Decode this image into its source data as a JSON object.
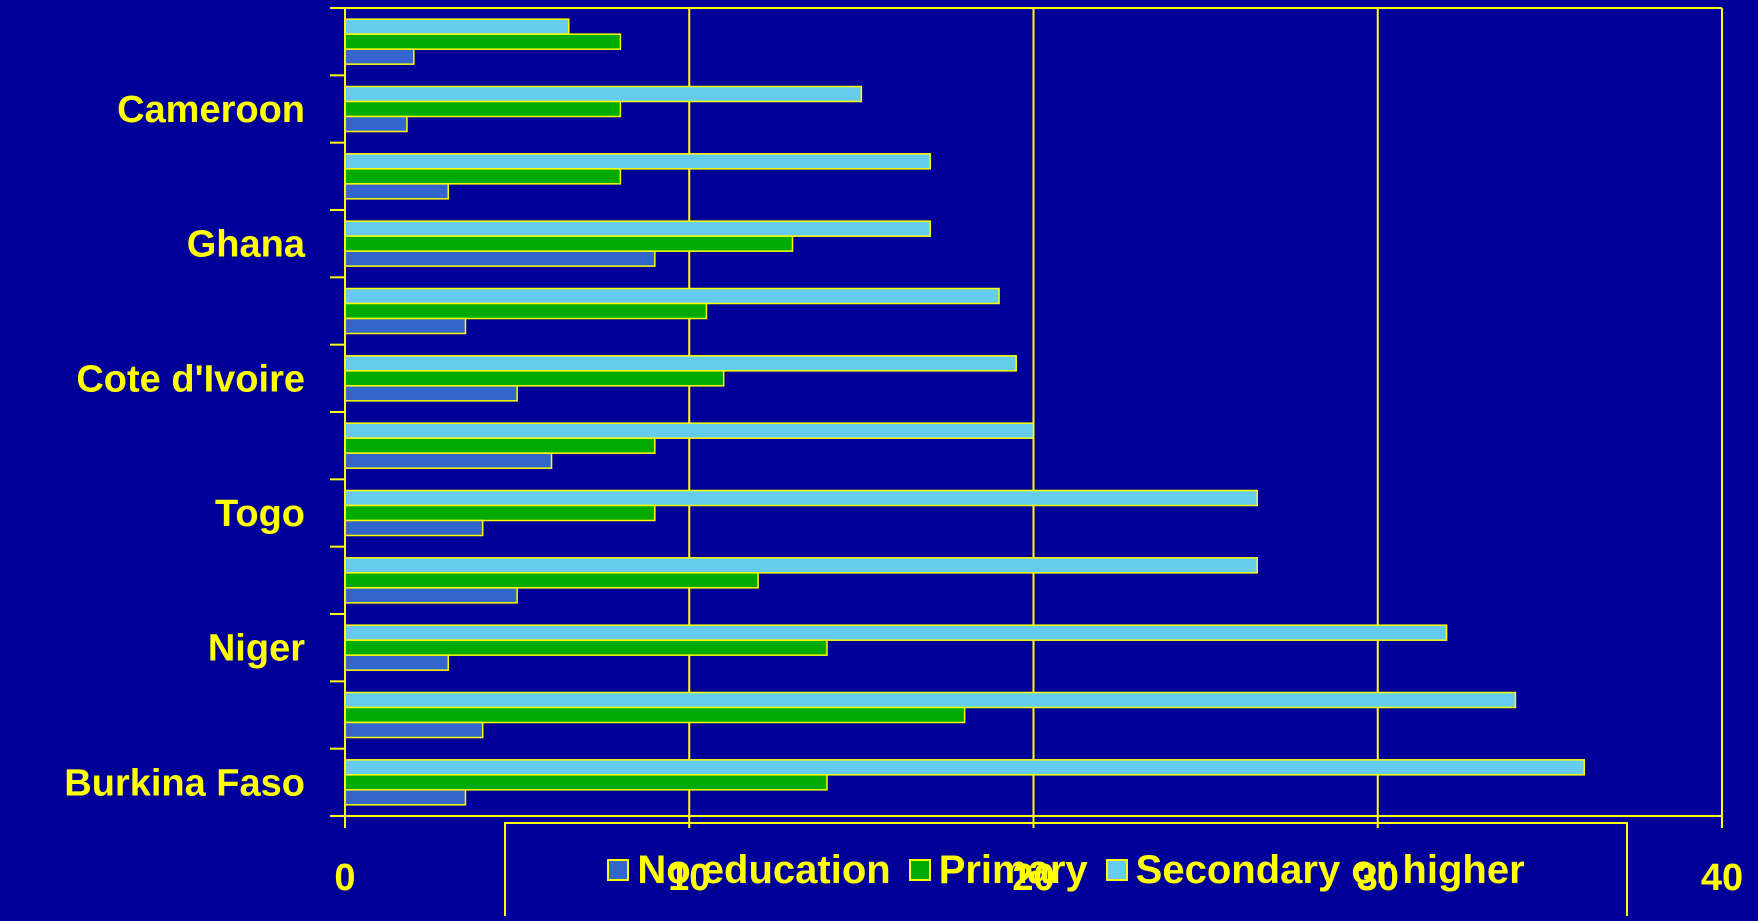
{
  "colors": {
    "background": "#000099",
    "axis": "#FFFF00",
    "text": "#FFFF00",
    "no_education": "#3366CC",
    "primary": "#00AA00",
    "secondary_or_higher": "#66CCEE"
  },
  "chart_data": {
    "type": "bar",
    "orientation": "horizontal",
    "title": "",
    "xlabel": "",
    "ylabel": "",
    "xlim": [
      0,
      40
    ],
    "x_ticks": [
      "0",
      "10",
      "20",
      "30",
      "40"
    ],
    "grid": true,
    "legend_position": "bottom",
    "row_labels": [
      "Cameroon",
      "Ghana",
      "Cote d'Ivoire",
      "Togo",
      "Niger",
      "Burkina Faso"
    ],
    "rows": [
      {
        "label": "",
        "values": [
          2,
          8,
          6.5
        ]
      },
      {
        "label": "Cameroon",
        "values": [
          1.8,
          8,
          15
        ]
      },
      {
        "label": "",
        "values": [
          3,
          8,
          17
        ]
      },
      {
        "label": "Ghana",
        "values": [
          9,
          13,
          17
        ]
      },
      {
        "label": "",
        "values": [
          3.5,
          10.5,
          19
        ]
      },
      {
        "label": "Cote d'Ivoire",
        "values": [
          5,
          11,
          19.5
        ]
      },
      {
        "label": "",
        "values": [
          6,
          9,
          20
        ]
      },
      {
        "label": "Togo",
        "values": [
          4,
          9,
          26.5
        ]
      },
      {
        "label": "",
        "values": [
          5,
          12,
          26.5
        ]
      },
      {
        "label": "Niger",
        "values": [
          3,
          14,
          32
        ]
      },
      {
        "label": "",
        "values": [
          4,
          18,
          34
        ]
      },
      {
        "label": "Burkina Faso",
        "values": [
          3.5,
          14,
          36
        ]
      }
    ],
    "series": [
      {
        "name": "No education"
      },
      {
        "name": "Primary"
      },
      {
        "name": "Secondary or higher"
      }
    ]
  }
}
